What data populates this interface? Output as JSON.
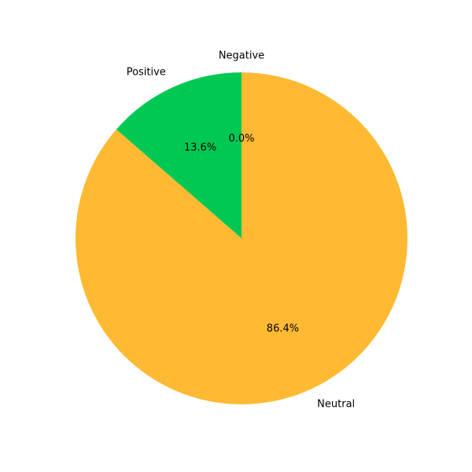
{
  "chart_data": {
    "type": "pie",
    "start_angle_deg": 90,
    "direction": "counterclockwise",
    "slices": [
      {
        "label": "Negative",
        "value": 0.0,
        "pct_label": "0.0%",
        "color": "#f44336"
      },
      {
        "label": "Positive",
        "value": 13.6,
        "pct_label": "13.6%",
        "color": "#00c853"
      },
      {
        "label": "Neutral",
        "value": 86.4,
        "pct_label": "86.4%",
        "color": "#ffb933"
      }
    ]
  }
}
